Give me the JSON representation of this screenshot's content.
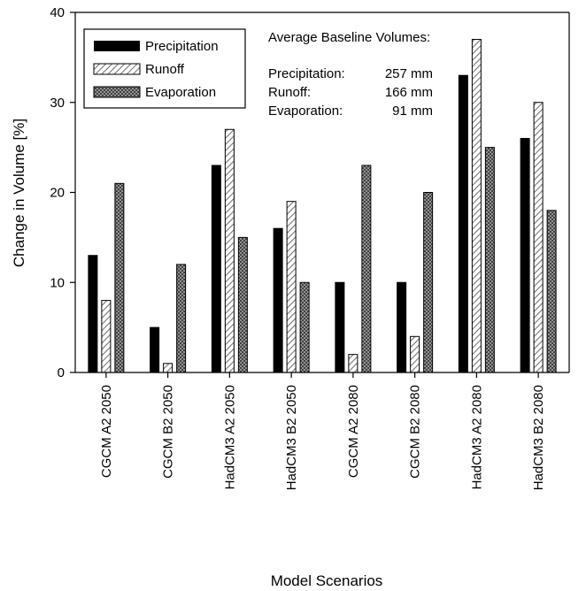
{
  "chart_data": {
    "type": "bar",
    "title": "",
    "xlabel": "Model Scenarios",
    "ylabel": "Change in Volume [%]",
    "ylim": [
      0,
      40
    ],
    "yticks": [
      0,
      10,
      20,
      30,
      40
    ],
    "grid": false,
    "legend_position": "top-left",
    "categories": [
      "CGCM A2 2050",
      "CGCM B2 2050",
      "HadCM3 A2 2050",
      "HadCM3 B2 2050",
      "CGCM A2 2080",
      "CGCM B2 2080",
      "HadCM3 A2 2080",
      "HadCM3 B2 2080"
    ],
    "series": [
      {
        "name": "Precipitation",
        "pattern": "solid-black",
        "values": [
          13,
          5,
          23,
          16,
          10,
          10,
          33,
          26
        ]
      },
      {
        "name": "Runoff",
        "pattern": "diagonal-hatch",
        "values": [
          8,
          1,
          27,
          19,
          2,
          4,
          37,
          30
        ]
      },
      {
        "name": "Evaporation",
        "pattern": "crosshatch",
        "values": [
          21,
          12,
          15,
          10,
          23,
          20,
          25,
          18
        ]
      }
    ],
    "annotation": {
      "heading": "Average Baseline Volumes:",
      "rows": [
        {
          "label": "Precipitation:",
          "value": "257 mm"
        },
        {
          "label": "Runoff:",
          "value": "166 mm"
        },
        {
          "label": "Evaporation:",
          "value": "91 mm"
        }
      ]
    }
  }
}
